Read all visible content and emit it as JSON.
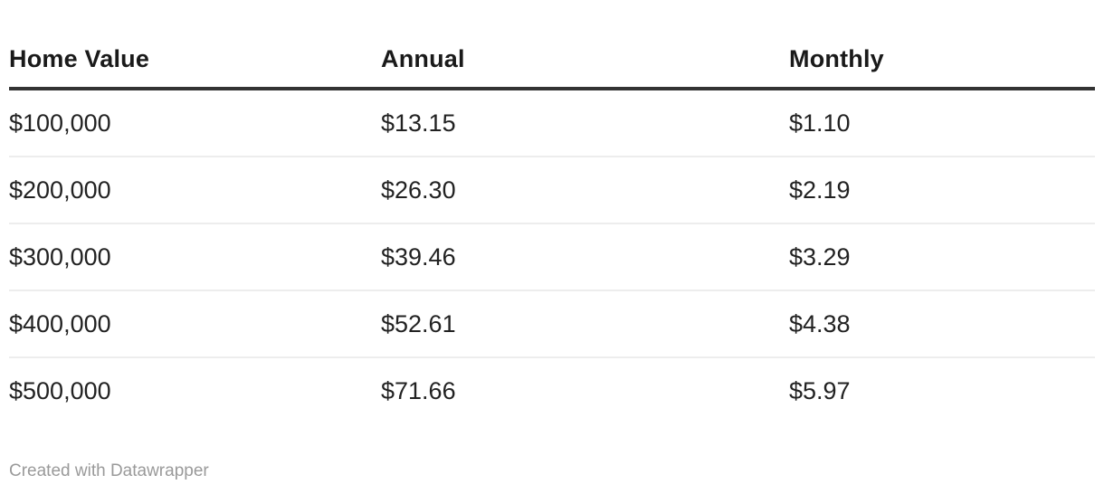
{
  "chart_data": {
    "type": "table",
    "columns": [
      "Home Value",
      "Annual",
      "Monthly"
    ],
    "rows": [
      [
        "$100,000",
        "$13.15",
        "$1.10"
      ],
      [
        "$200,000",
        "$26.30",
        "$2.19"
      ],
      [
        "$300,000",
        "$39.46",
        "$3.29"
      ],
      [
        "$400,000",
        "$52.61",
        "$4.38"
      ],
      [
        "$500,000",
        "$71.66",
        "$5.97"
      ]
    ],
    "layout": {
      "header_rule": "thick dark line under header",
      "row_divider": "thin light line between rows",
      "alignment": "left"
    }
  },
  "footer": {
    "credit": "Created with Datawrapper"
  },
  "colors": {
    "background": "#ffffff",
    "text": "#222222",
    "header_text": "#1a1a1a",
    "header_border": "#333333",
    "row_divider": "#ededed",
    "credit_text": "#9a9a9a"
  }
}
